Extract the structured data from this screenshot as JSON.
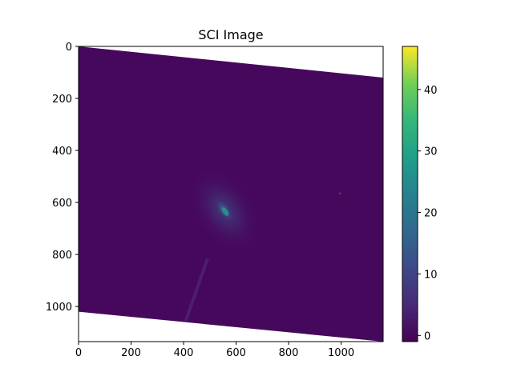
{
  "chart_data": {
    "type": "heatmap",
    "title": "SCI Image",
    "xlabel": "",
    "ylabel": "",
    "x_range": [
      0,
      1160
    ],
    "y_range": [
      1135,
      0
    ],
    "y_inverted": true,
    "x_ticks": [
      0,
      200,
      400,
      600,
      800,
      1000
    ],
    "y_ticks": [
      0,
      200,
      400,
      600,
      800,
      1000
    ],
    "colormap": "viridis",
    "colorbar": {
      "range": [
        -1,
        47
      ],
      "ticks": [
        0,
        10,
        20,
        30,
        40
      ]
    },
    "image_region_corners": [
      [
        0,
        0
      ],
      [
        1160,
        120
      ],
      [
        1160,
        1135
      ],
      [
        0,
        1020
      ]
    ],
    "background_value": 0,
    "features": [
      {
        "kind": "galaxy",
        "x": 555,
        "y": 630,
        "peak_value": 18
      },
      {
        "kind": "point_source",
        "x": 995,
        "y": 565,
        "peak_value": 14
      },
      {
        "kind": "streak",
        "x1": 490,
        "y1": 820,
        "x2": 410,
        "y2": 1050,
        "value": 2
      }
    ],
    "grid": false
  },
  "colors": {
    "viridis_low": "#440154",
    "viridis_bg": "#46085c",
    "viridis_mid": "#21918c",
    "viridis_high": "#fde725"
  }
}
